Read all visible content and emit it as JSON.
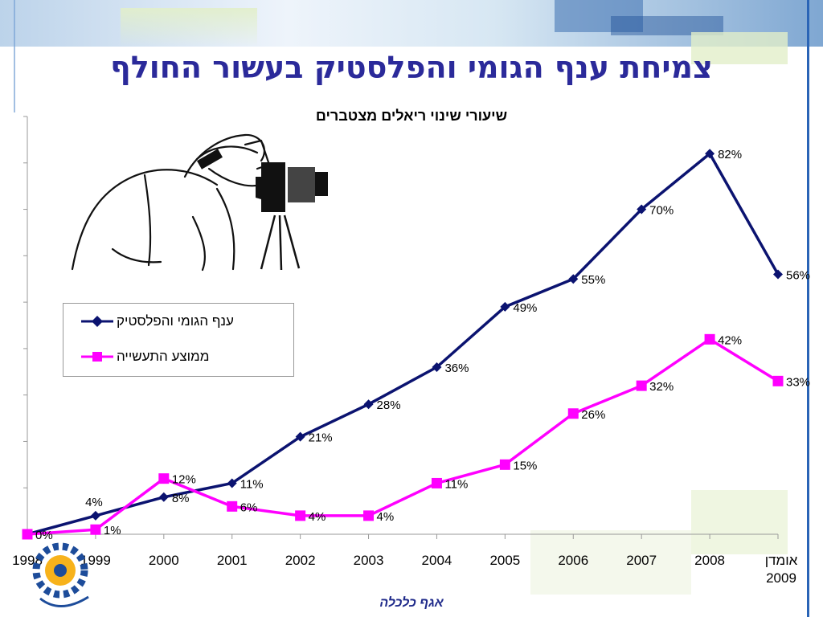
{
  "slide": {
    "title": "צמיחת ענף הגומי והפלסטיק בעשור החולף",
    "footer": "אגף כלכלה"
  },
  "chart_data": {
    "type": "line",
    "title": "שיעורי שינוי ריאלים מצטברים",
    "categories": [
      "1998",
      "1999",
      "2000",
      "2001",
      "2002",
      "2003",
      "2004",
      "2005",
      "2006",
      "2007",
      "2008",
      "אומדן 2009"
    ],
    "ylim": [
      0,
      90
    ],
    "y_tick_step": 10,
    "legend_position": "middle-left",
    "grid": false,
    "series": [
      {
        "name": "ענף הגומי והפלסטיק",
        "color": "#0b1370",
        "marker": "diamond",
        "values": [
          0,
          4,
          8,
          11,
          21,
          28,
          36,
          49,
          55,
          70,
          82,
          56
        ],
        "labels": [
          "",
          "4%",
          "8%",
          "11%",
          "21%",
          "28%",
          "36%",
          "49%",
          "55%",
          "70%",
          "82%",
          "56%"
        ]
      },
      {
        "name": "ממוצע התעשייה",
        "color": "#ff00ff",
        "marker": "square",
        "values": [
          0,
          1,
          12,
          6,
          4,
          4,
          11,
          15,
          26,
          32,
          42,
          33
        ],
        "labels": [
          "0%",
          "1%",
          "12%",
          "6%",
          "4%",
          "4%",
          "11%",
          "15%",
          "26%",
          "32%",
          "42%",
          "33%"
        ]
      }
    ]
  }
}
